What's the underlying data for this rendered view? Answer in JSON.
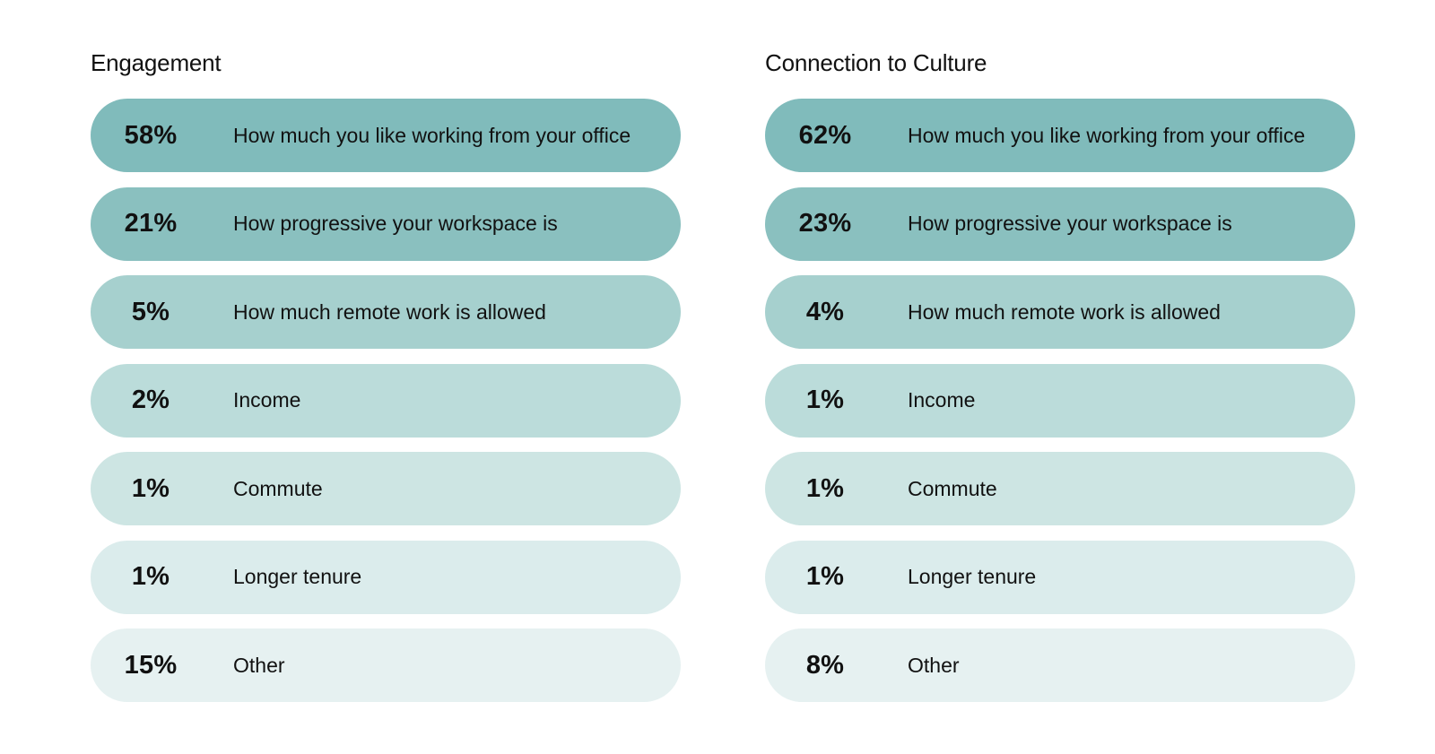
{
  "chart_data": [
    {
      "type": "table",
      "title": "Engagement",
      "categories": [
        "How much you like working from your office",
        "How progressive your workspace is",
        "How much remote work is allowed",
        "Income",
        "Commute",
        "Longer tenure",
        "Other"
      ],
      "values": [
        58,
        21,
        5,
        2,
        1,
        1,
        15
      ],
      "value_labels": [
        "58%",
        "21%",
        "5%",
        "2%",
        "1%",
        "1%",
        "15%"
      ]
    },
    {
      "type": "table",
      "title": "Connection to Culture",
      "categories": [
        "How much you like working from your office",
        "How progressive your workspace is",
        "How much remote work is allowed",
        "Income",
        "Commute",
        "Longer tenure",
        "Other"
      ],
      "values": [
        62,
        23,
        4,
        1,
        1,
        1,
        8
      ],
      "value_labels": [
        "62%",
        "23%",
        "4%",
        "1%",
        "1%",
        "1%",
        "8%"
      ]
    }
  ],
  "row_colors": [
    "#80bbbb",
    "#8ac0bf",
    "#a6d0ce",
    "#bbdcda",
    "#cde5e3",
    "#dbecec",
    "#e6f1f1"
  ]
}
